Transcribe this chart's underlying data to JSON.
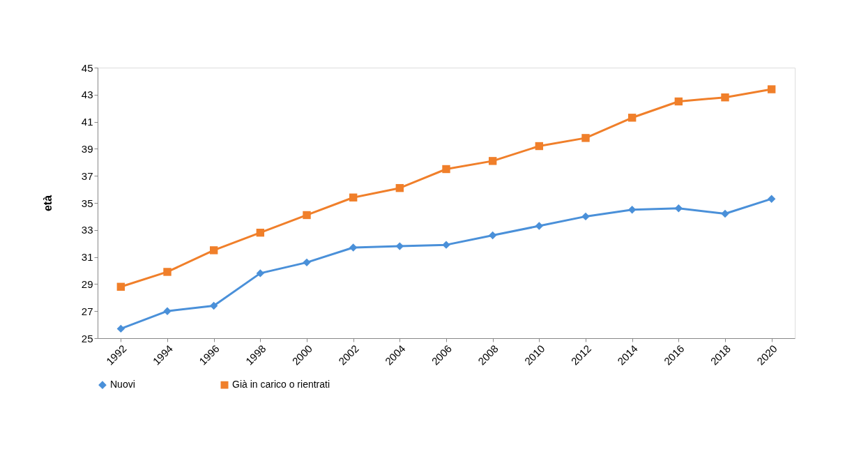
{
  "chart_data": {
    "type": "line",
    "ylabel": "età",
    "categories": [
      "1992",
      "1994",
      "1996",
      "1998",
      "2000",
      "2002",
      "2004",
      "2006",
      "2008",
      "2010",
      "2012",
      "2014",
      "2016",
      "2018",
      "2020"
    ],
    "series": [
      {
        "name": "Nuovi",
        "color": "#4a90d9",
        "marker": "diamond",
        "values": [
          25.7,
          27.0,
          27.4,
          29.8,
          30.6,
          31.7,
          31.8,
          31.9,
          32.6,
          33.3,
          34.0,
          34.5,
          34.6,
          34.2,
          35.3
        ]
      },
      {
        "name": "Già in carico o rientrati",
        "color": "#f07f2a",
        "marker": "square",
        "values": [
          28.8,
          29.9,
          31.5,
          32.8,
          34.1,
          35.4,
          36.1,
          37.5,
          38.1,
          39.2,
          39.8,
          41.3,
          42.5,
          42.8,
          43.4
        ]
      }
    ],
    "ylim": [
      25,
      45
    ],
    "yticks": [
      25,
      27,
      29,
      31,
      33,
      35,
      37,
      39,
      41,
      43,
      45
    ],
    "grid": false,
    "legend": "bottom",
    "line_style": "solid"
  }
}
